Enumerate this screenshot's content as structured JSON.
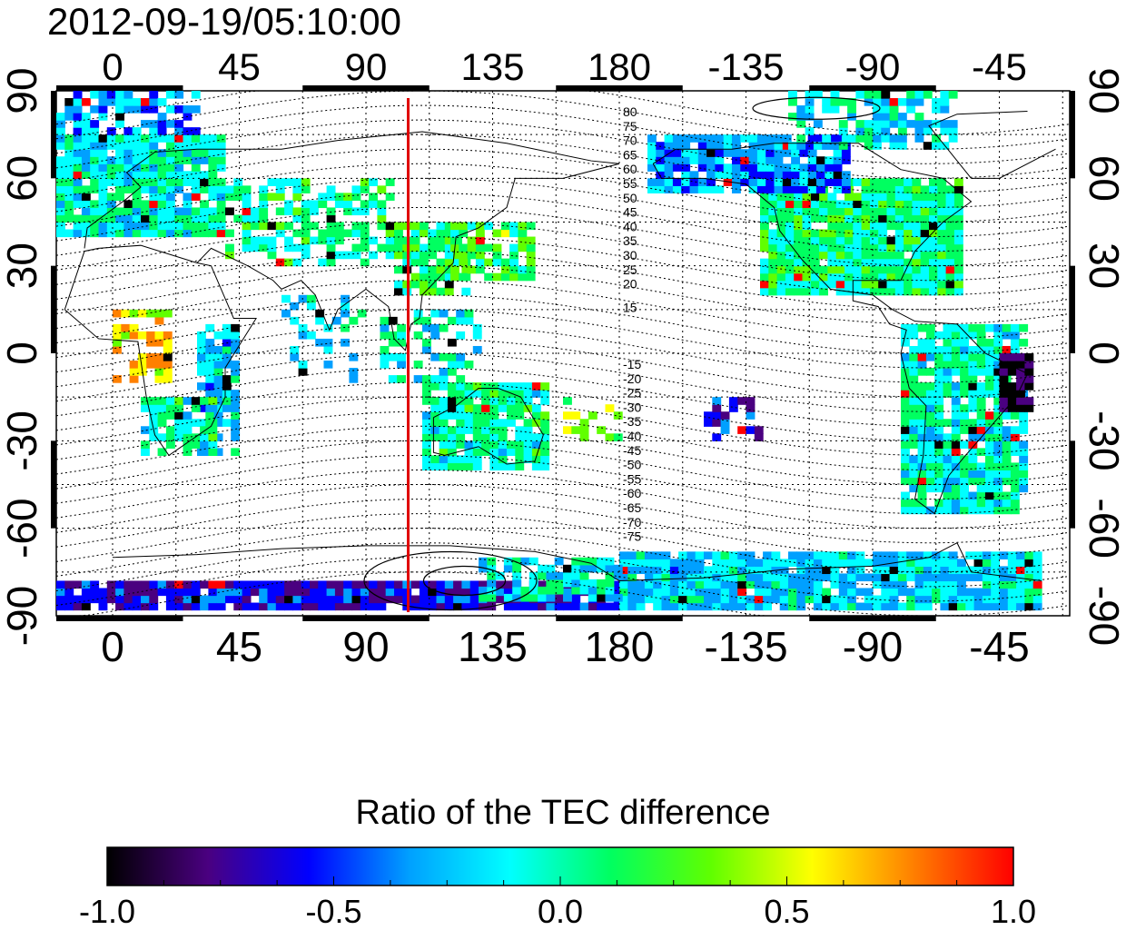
{
  "title": "2012-09-19/05:10:00",
  "map": {
    "longitude_ticks_top": [
      "0",
      "45",
      "90",
      "135",
      "180",
      "-135",
      "-90",
      "-45"
    ],
    "longitude_ticks_bottom": [
      "0",
      "45",
      "90",
      "135",
      "180",
      "-135",
      "-90",
      "-45"
    ],
    "latitude_ticks_left": [
      "90",
      "60",
      "30",
      "0",
      "-30",
      "-60",
      "-90"
    ],
    "latitude_ticks_right": [
      "90",
      "60",
      "30",
      "0",
      "-30",
      "-60",
      "-90"
    ],
    "contour_labels_north": [
      "80",
      "75",
      "70",
      "65",
      "60",
      "55",
      "50",
      "45",
      "40",
      "35",
      "30",
      "25",
      "20",
      "15"
    ],
    "contour_labels_south": [
      "-15",
      "-20",
      "-25",
      "-30",
      "-35",
      "-40",
      "-45",
      "-50",
      "-55",
      "-60",
      "-65",
      "-70",
      "-75"
    ],
    "marker_line": {
      "longitude": 105,
      "color": "#e00000"
    }
  },
  "colorbar": {
    "title": "Ratio of the TEC difference",
    "ticks": [
      "-1.0",
      "-0.5",
      "0.0",
      "0.5",
      "1.0"
    ],
    "min": -1.0,
    "max": 1.0,
    "colors": [
      "#000000",
      "#4a0080",
      "#0000ff",
      "#00a0ff",
      "#00ffff",
      "#00ff60",
      "#60ff00",
      "#ffff00",
      "#ff8000",
      "#ff0000"
    ]
  }
}
